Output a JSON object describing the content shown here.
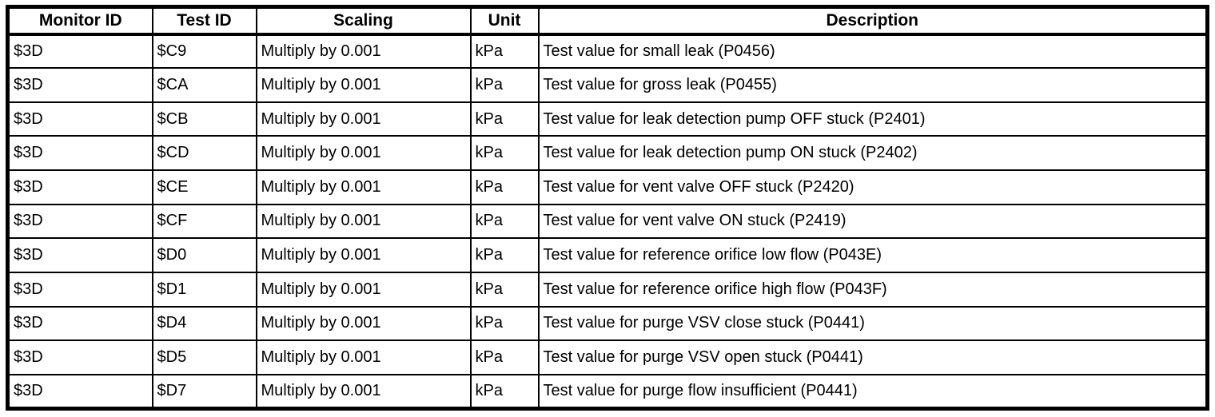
{
  "colors": {
    "border": "#000000",
    "background": "#ffffff",
    "text": "#000000"
  },
  "table": {
    "columns": [
      {
        "key": "monitor-id",
        "label": "Monitor ID"
      },
      {
        "key": "test-id",
        "label": "Test ID"
      },
      {
        "key": "scaling",
        "label": "Scaling"
      },
      {
        "key": "unit",
        "label": "Unit"
      },
      {
        "key": "description",
        "label": "Description"
      }
    ],
    "rows": [
      {
        "monitor_id": "$3D",
        "test_id": "$C9",
        "scaling": "Multiply by 0.001",
        "unit": "kPa",
        "description": "Test value for small leak (P0456)"
      },
      {
        "monitor_id": "$3D",
        "test_id": "$CA",
        "scaling": "Multiply by 0.001",
        "unit": "kPa",
        "description": "Test value for gross leak (P0455)"
      },
      {
        "monitor_id": "$3D",
        "test_id": "$CB",
        "scaling": "Multiply by 0.001",
        "unit": "kPa",
        "description": "Test value for leak detection pump OFF stuck (P2401)"
      },
      {
        "monitor_id": "$3D",
        "test_id": "$CD",
        "scaling": "Multiply by 0.001",
        "unit": "kPa",
        "description": "Test value for leak detection pump ON stuck (P2402)"
      },
      {
        "monitor_id": "$3D",
        "test_id": "$CE",
        "scaling": "Multiply by 0.001",
        "unit": "kPa",
        "description": "Test value for vent valve OFF stuck (P2420)"
      },
      {
        "monitor_id": "$3D",
        "test_id": "$CF",
        "scaling": "Multiply by 0.001",
        "unit": "kPa",
        "description": "Test value for vent valve ON stuck (P2419)"
      },
      {
        "monitor_id": "$3D",
        "test_id": "$D0",
        "scaling": "Multiply by 0.001",
        "unit": "kPa",
        "description": "Test value for reference orifice low flow (P043E)"
      },
      {
        "monitor_id": "$3D",
        "test_id": "$D1",
        "scaling": "Multiply by 0.001",
        "unit": "kPa",
        "description": "Test value for reference orifice high flow (P043F)"
      },
      {
        "monitor_id": "$3D",
        "test_id": "$D4",
        "scaling": "Multiply by 0.001",
        "unit": "kPa",
        "description": "Test value for purge VSV close stuck (P0441)"
      },
      {
        "monitor_id": "$3D",
        "test_id": "$D5",
        "scaling": "Multiply by 0.001",
        "unit": "kPa",
        "description": "Test value for purge VSV open stuck (P0441)"
      },
      {
        "monitor_id": "$3D",
        "test_id": "$D7",
        "scaling": "Multiply by 0.001",
        "unit": "kPa",
        "description": "Test value for purge flow insufficient (P0441)"
      }
    ]
  }
}
